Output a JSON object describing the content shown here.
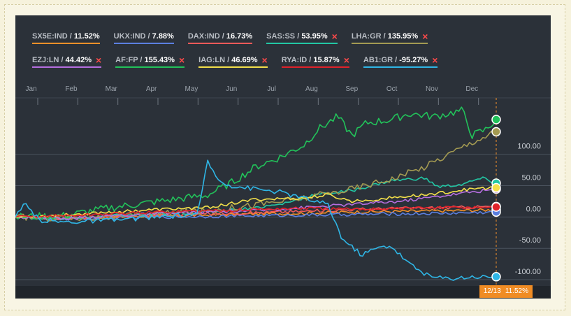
{
  "legend_rows": [
    [
      {
        "ticker": "SX5E:IND",
        "value": "11.52%",
        "color": "#f0902a",
        "removable": false
      },
      {
        "ticker": "UKX:IND",
        "value": "7.88%",
        "color": "#5b7fe0",
        "removable": false
      },
      {
        "ticker": "DAX:IND",
        "value": "16.73%",
        "color": "#f05a5a",
        "removable": false
      },
      {
        "ticker": "SAS:SS",
        "value": "53.95%",
        "color": "#22c7a4",
        "removable": true
      },
      {
        "ticker": "LHA:GR",
        "value": "135.95%",
        "color": "#a39a52",
        "removable": true
      }
    ],
    [
      {
        "ticker": "EZJ:LN",
        "value": "44.42%",
        "color": "#b66ee0",
        "removable": true
      },
      {
        "ticker": "AF:FP",
        "value": "155.43%",
        "color": "#22c25a",
        "removable": true
      },
      {
        "ticker": "IAG:LN",
        "value": "46.69%",
        "color": "#f3e04a",
        "removable": true
      },
      {
        "ticker": "RYA:ID",
        "value": "15.87%",
        "color": "#e0222a",
        "removable": true
      },
      {
        "ticker": "AB1:GR",
        "value": "-95.27%",
        "color": "#2fb6e6",
        "removable": true
      }
    ]
  ],
  "remove_glyph": "×",
  "date_tag": {
    "date": "12/13",
    "value": "11.52%"
  },
  "chart_data": {
    "type": "line",
    "x_labels": [
      "Jan",
      "Feb",
      "Mar",
      "Apr",
      "May",
      "Jun",
      "Jul",
      "Aug",
      "Sep",
      "Oct",
      "Nov",
      "Dec"
    ],
    "y_ticks": [
      100,
      50,
      0,
      -50,
      -100
    ],
    "y_tick_labels": [
      "100.00",
      "50.00",
      "0.00",
      "-50.00",
      "-100.00"
    ],
    "ylim": [
      -110,
      190
    ],
    "grid": true,
    "series": [
      {
        "name": "SX5E:IND",
        "color": "#f0902a",
        "keys": [
          [
            0,
            0
          ],
          [
            0.1,
            -2
          ],
          [
            0.2,
            0
          ],
          [
            0.3,
            2
          ],
          [
            0.4,
            3
          ],
          [
            0.5,
            5
          ],
          [
            0.6,
            6
          ],
          [
            0.7,
            8
          ],
          [
            0.8,
            9
          ],
          [
            0.9,
            10
          ],
          [
            1,
            11.52
          ]
        ]
      },
      {
        "name": "UKX:IND",
        "color": "#5b7fe0",
        "keys": [
          [
            0,
            0
          ],
          [
            0.1,
            -3
          ],
          [
            0.2,
            -2
          ],
          [
            0.3,
            0
          ],
          [
            0.4,
            1
          ],
          [
            0.5,
            2
          ],
          [
            0.6,
            3
          ],
          [
            0.7,
            4
          ],
          [
            0.8,
            5
          ],
          [
            0.9,
            6
          ],
          [
            1,
            7.88
          ]
        ]
      },
      {
        "name": "DAX:IND",
        "color": "#f05a5a",
        "keys": [
          [
            0,
            0
          ],
          [
            0.1,
            -2
          ],
          [
            0.2,
            0
          ],
          [
            0.3,
            3
          ],
          [
            0.4,
            5
          ],
          [
            0.5,
            7
          ],
          [
            0.6,
            9
          ],
          [
            0.7,
            12
          ],
          [
            0.8,
            14
          ],
          [
            0.9,
            15
          ],
          [
            1,
            16.73
          ]
        ]
      },
      {
        "name": "SAS:SS",
        "color": "#22c7a4",
        "keys": [
          [
            0,
            0
          ],
          [
            0.1,
            -3
          ],
          [
            0.2,
            2
          ],
          [
            0.3,
            5
          ],
          [
            0.4,
            8
          ],
          [
            0.5,
            15
          ],
          [
            0.55,
            20
          ],
          [
            0.62,
            35
          ],
          [
            0.7,
            42
          ],
          [
            0.78,
            58
          ],
          [
            0.85,
            62
          ],
          [
            0.88,
            48
          ],
          [
            0.93,
            52
          ],
          [
            0.97,
            62
          ],
          [
            1,
            53.95
          ]
        ]
      },
      {
        "name": "LHA:GR",
        "color": "#a39a52",
        "keys": [
          [
            0,
            0
          ],
          [
            0.1,
            -2
          ],
          [
            0.2,
            0
          ],
          [
            0.3,
            5
          ],
          [
            0.4,
            10
          ],
          [
            0.5,
            20
          ],
          [
            0.6,
            30
          ],
          [
            0.7,
            45
          ],
          [
            0.75,
            55
          ],
          [
            0.8,
            65
          ],
          [
            0.85,
            80
          ],
          [
            0.9,
            100
          ],
          [
            0.95,
            120
          ],
          [
            1,
            135.95
          ]
        ]
      },
      {
        "name": "EZJ:LN",
        "color": "#b66ee0",
        "keys": [
          [
            0,
            0
          ],
          [
            0.1,
            -3
          ],
          [
            0.2,
            2
          ],
          [
            0.3,
            5
          ],
          [
            0.4,
            8
          ],
          [
            0.5,
            10
          ],
          [
            0.6,
            15
          ],
          [
            0.7,
            20
          ],
          [
            0.8,
            25
          ],
          [
            0.85,
            30
          ],
          [
            0.9,
            35
          ],
          [
            0.95,
            40
          ],
          [
            1,
            44.42
          ]
        ]
      },
      {
        "name": "AF:FP",
        "color": "#22c25a",
        "keys": [
          [
            0,
            0
          ],
          [
            0.1,
            2
          ],
          [
            0.2,
            15
          ],
          [
            0.3,
            25
          ],
          [
            0.4,
            35
          ],
          [
            0.45,
            55
          ],
          [
            0.5,
            80
          ],
          [
            0.55,
            95
          ],
          [
            0.6,
            115
          ],
          [
            0.63,
            140
          ],
          [
            0.67,
            160
          ],
          [
            0.7,
            130
          ],
          [
            0.73,
            150
          ],
          [
            0.78,
            155
          ],
          [
            0.82,
            165
          ],
          [
            0.87,
            160
          ],
          [
            0.9,
            165
          ],
          [
            0.93,
            170
          ],
          [
            0.95,
            130
          ],
          [
            0.98,
            140
          ],
          [
            1,
            155.43
          ]
        ]
      },
      {
        "name": "IAG:LN",
        "color": "#f3e04a",
        "keys": [
          [
            0,
            0
          ],
          [
            0.1,
            3
          ],
          [
            0.2,
            8
          ],
          [
            0.3,
            12
          ],
          [
            0.4,
            15
          ],
          [
            0.5,
            28
          ],
          [
            0.6,
            30
          ],
          [
            0.65,
            35
          ],
          [
            0.7,
            25
          ],
          [
            0.75,
            28
          ],
          [
            0.8,
            32
          ],
          [
            0.85,
            35
          ],
          [
            0.9,
            40
          ],
          [
            0.95,
            45
          ],
          [
            1,
            46.69
          ]
        ]
      },
      {
        "name": "RYA:ID",
        "color": "#e0222a",
        "keys": [
          [
            0,
            0
          ],
          [
            0.1,
            2
          ],
          [
            0.2,
            5
          ],
          [
            0.3,
            8
          ],
          [
            0.4,
            10
          ],
          [
            0.5,
            12
          ],
          [
            0.6,
            14
          ],
          [
            0.7,
            12
          ],
          [
            0.8,
            14
          ],
          [
            0.9,
            15
          ],
          [
            1,
            15.87
          ]
        ]
      },
      {
        "name": "AB1:GR",
        "color": "#2fb6e6",
        "keys": [
          [
            0,
            0
          ],
          [
            0.02,
            20
          ],
          [
            0.05,
            -5
          ],
          [
            0.1,
            -8
          ],
          [
            0.2,
            -5
          ],
          [
            0.3,
            0
          ],
          [
            0.38,
            5
          ],
          [
            0.4,
            90
          ],
          [
            0.42,
            60
          ],
          [
            0.45,
            50
          ],
          [
            0.5,
            45
          ],
          [
            0.55,
            40
          ],
          [
            0.6,
            30
          ],
          [
            0.65,
            20
          ],
          [
            0.68,
            -35
          ],
          [
            0.72,
            -60
          ],
          [
            0.75,
            -50
          ],
          [
            0.78,
            -45
          ],
          [
            0.82,
            -75
          ],
          [
            0.86,
            -95
          ],
          [
            0.9,
            -98
          ],
          [
            0.95,
            -95
          ],
          [
            1,
            -95.27
          ]
        ]
      }
    ]
  }
}
